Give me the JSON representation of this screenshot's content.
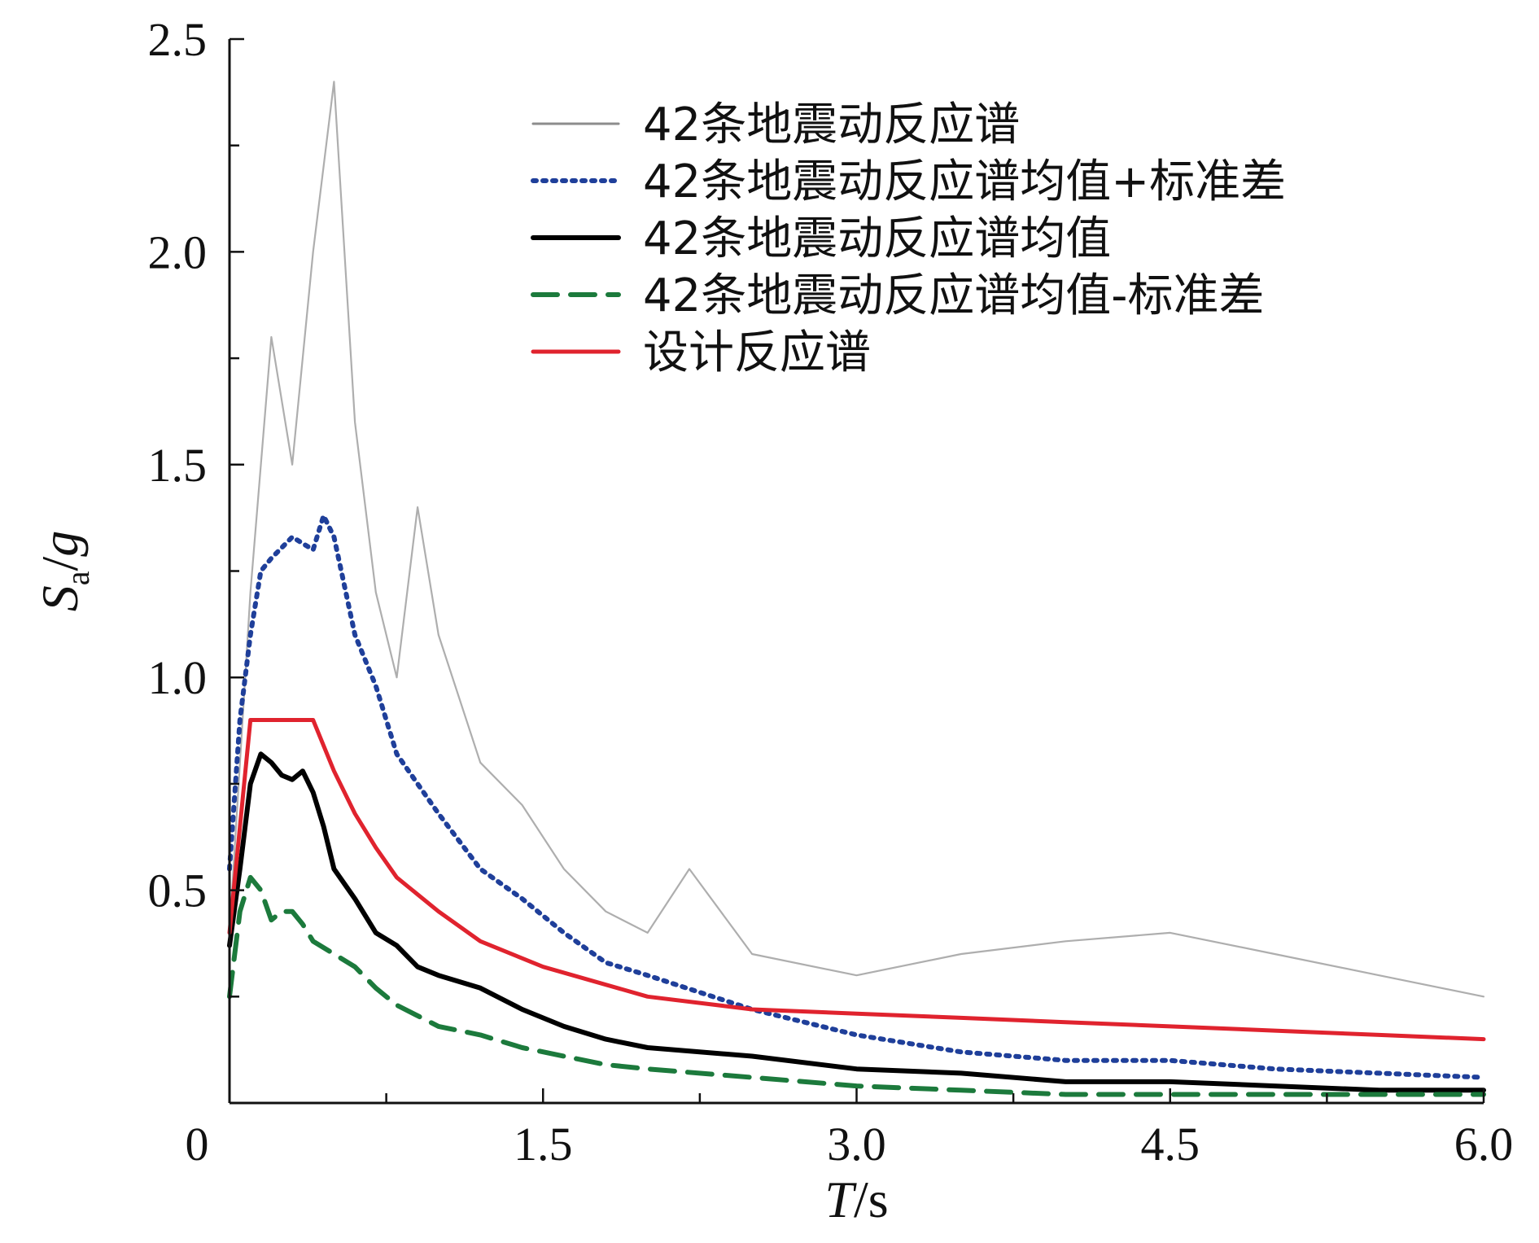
{
  "chart_data": {
    "type": "line",
    "xlabel": "T/s",
    "ylabel": "Sa/g",
    "xlim": [
      0,
      6.0
    ],
    "ylim": [
      0,
      2.5
    ],
    "x_ticks": [
      {
        "value": 0,
        "label": "0"
      },
      {
        "value": 1.5,
        "label": "1.5"
      },
      {
        "value": 3.0,
        "label": "3.0"
      },
      {
        "value": 4.5,
        "label": "4.5"
      },
      {
        "value": 6.0,
        "label": "6.0"
      }
    ],
    "y_ticks": [
      {
        "value": 0.5,
        "label": "0.5"
      },
      {
        "value": 1.0,
        "label": "1.0"
      },
      {
        "value": 1.5,
        "label": "1.5"
      },
      {
        "value": 2.0,
        "label": "2.0"
      },
      {
        "value": 2.5,
        "label": "2.5"
      }
    ],
    "legend_position": "top-right",
    "series": [
      {
        "name": "42条地震动反应谱",
        "style": "thin-gray",
        "color": "#8c8c8c",
        "x": [
          0.0,
          0.1,
          0.2,
          0.3,
          0.4,
          0.5,
          0.6,
          0.7,
          0.8,
          0.9,
          1.0,
          1.2,
          1.4,
          1.6,
          1.8,
          2.0,
          2.2,
          2.5,
          3.0,
          3.5,
          4.0,
          4.5,
          5.0,
          5.5,
          6.0
        ],
        "y": [
          0.4,
          1.2,
          1.8,
          1.5,
          2.0,
          2.4,
          1.6,
          1.2,
          1.0,
          1.4,
          1.1,
          0.8,
          0.7,
          0.55,
          0.45,
          0.4,
          0.55,
          0.35,
          0.3,
          0.35,
          0.38,
          0.4,
          0.35,
          0.3,
          0.25
        ]
      },
      {
        "name": "42条地震动反应谱均值+标准差",
        "style": "dotted",
        "color": "#1f3f9a",
        "x": [
          0.0,
          0.05,
          0.1,
          0.15,
          0.2,
          0.3,
          0.4,
          0.45,
          0.5,
          0.6,
          0.7,
          0.8,
          0.9,
          1.0,
          1.2,
          1.4,
          1.6,
          1.8,
          2.0,
          2.5,
          3.0,
          3.5,
          4.0,
          4.5,
          5.0,
          5.5,
          6.0
        ],
        "y": [
          0.55,
          0.9,
          1.1,
          1.25,
          1.28,
          1.33,
          1.3,
          1.38,
          1.33,
          1.1,
          0.98,
          0.82,
          0.75,
          0.68,
          0.55,
          0.48,
          0.4,
          0.33,
          0.3,
          0.22,
          0.16,
          0.12,
          0.1,
          0.1,
          0.08,
          0.07,
          0.06
        ]
      },
      {
        "name": "42条地震动反应谱均值",
        "style": "solid-bold",
        "color": "#000000",
        "x": [
          0.0,
          0.05,
          0.1,
          0.15,
          0.2,
          0.25,
          0.3,
          0.35,
          0.4,
          0.45,
          0.5,
          0.6,
          0.7,
          0.8,
          0.9,
          1.0,
          1.2,
          1.4,
          1.6,
          1.8,
          2.0,
          2.5,
          3.0,
          3.5,
          4.0,
          4.5,
          5.0,
          5.5,
          6.0
        ],
        "y": [
          0.37,
          0.55,
          0.75,
          0.82,
          0.8,
          0.77,
          0.76,
          0.78,
          0.73,
          0.65,
          0.55,
          0.48,
          0.4,
          0.37,
          0.32,
          0.3,
          0.27,
          0.22,
          0.18,
          0.15,
          0.13,
          0.11,
          0.08,
          0.07,
          0.05,
          0.05,
          0.04,
          0.03,
          0.03
        ]
      },
      {
        "name": "42条地震动反应谱均值-标准差",
        "style": "dashed",
        "color": "#1c7a3c",
        "x": [
          0.0,
          0.05,
          0.1,
          0.15,
          0.2,
          0.25,
          0.3,
          0.35,
          0.4,
          0.5,
          0.6,
          0.7,
          0.8,
          1.0,
          1.2,
          1.4,
          1.6,
          1.8,
          2.0,
          2.5,
          3.0,
          3.5,
          4.0,
          4.5,
          5.0,
          5.5,
          6.0
        ],
        "y": [
          0.25,
          0.45,
          0.53,
          0.5,
          0.43,
          0.45,
          0.45,
          0.42,
          0.38,
          0.35,
          0.32,
          0.27,
          0.23,
          0.18,
          0.16,
          0.13,
          0.11,
          0.09,
          0.08,
          0.06,
          0.04,
          0.03,
          0.02,
          0.02,
          0.02,
          0.02,
          0.02
        ]
      },
      {
        "name": "设计反应谱",
        "style": "solid",
        "color": "#e0232e",
        "x": [
          0.0,
          0.1,
          0.2,
          0.3,
          0.4,
          0.5,
          0.6,
          0.7,
          0.8,
          1.0,
          1.2,
          1.5,
          2.0,
          2.5,
          3.0,
          3.5,
          4.0,
          4.5,
          5.0,
          5.5,
          6.0
        ],
        "y": [
          0.4,
          0.9,
          0.9,
          0.9,
          0.9,
          0.78,
          0.68,
          0.6,
          0.53,
          0.45,
          0.38,
          0.32,
          0.25,
          0.22,
          0.21,
          0.2,
          0.19,
          0.18,
          0.17,
          0.16,
          0.15
        ]
      }
    ]
  }
}
